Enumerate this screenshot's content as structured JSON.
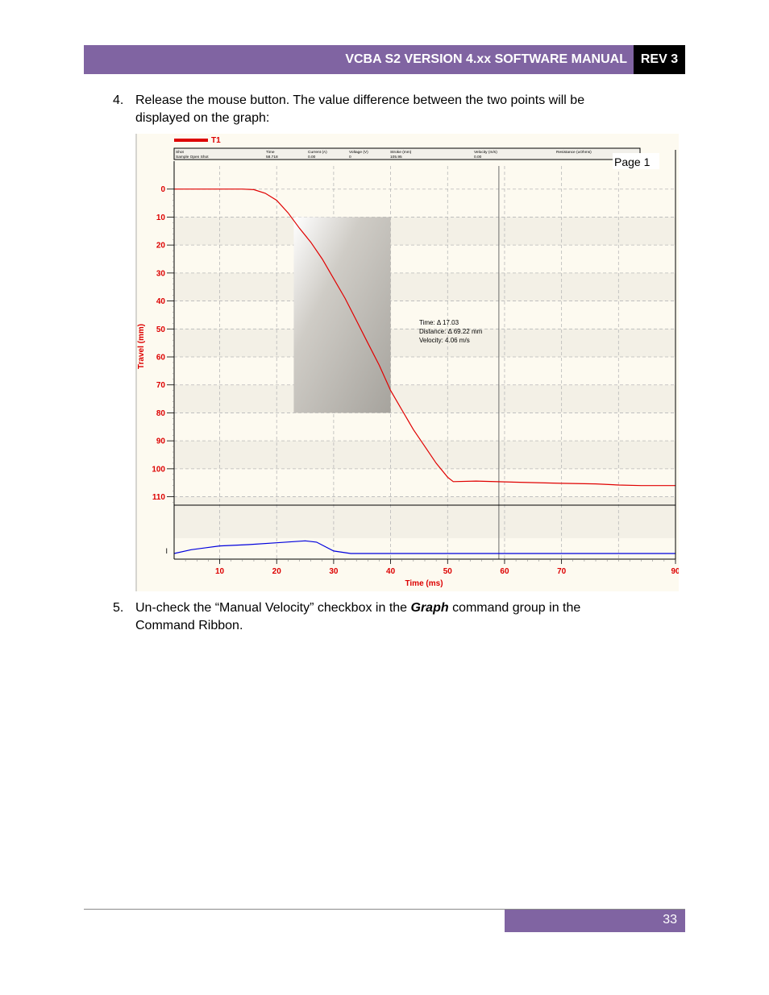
{
  "header": {
    "title": "VCBA S2 VERSION 4.xx SOFTWARE MANUAL",
    "rev": "REV 3"
  },
  "steps": [
    {
      "number": "4.",
      "line1": "Release the mouse button. The value difference between the two points will be",
      "line2": "displayed on the graph:"
    },
    {
      "number": "5.",
      "line1_a": "Un-check the “Manual Velocity” checkbox in the ",
      "line1_b": "Graph",
      "line1_c": " command group in the",
      "line2": "Command Ribbon."
    }
  ],
  "footer": {
    "page_number": "33"
  },
  "chart_data": {
    "type": "line",
    "legend": {
      "label": "T1",
      "color": "#dd0000",
      "placement": "top-left"
    },
    "info_table": {
      "headers": [
        "Shot",
        "Time",
        "Current (A)",
        "Voltage (V)",
        "Stroke (mm)",
        "Velocity (m/s)",
        "Resistance (uOhms)"
      ],
      "values": [
        "Sample Open Shot",
        "58.718",
        "0.00",
        "0",
        "105.95",
        "0.00",
        ""
      ]
    },
    "page_label": "Page 1",
    "xlabel": "Time (ms)",
    "ylabel": "Travel (mm)",
    "xlim": [
      2,
      90
    ],
    "ylim": [
      -10,
      113
    ],
    "x_ticks": [
      "10",
      "20",
      "30",
      "40",
      "50",
      "60",
      "70",
      "90"
    ],
    "y_ticks": [
      "0",
      "10",
      "20",
      "30",
      "40",
      "50",
      "60",
      "70",
      "80",
      "90",
      "100",
      "110"
    ],
    "lower_panel_tick": "I",
    "series": [
      {
        "color": "#e00000",
        "x": [
          2,
          14,
          16,
          18,
          20,
          22,
          24,
          26,
          28,
          30,
          32,
          34,
          36,
          38,
          40,
          42,
          44,
          46,
          48,
          50,
          51,
          55,
          62,
          70,
          76,
          80,
          84,
          90
        ],
        "y": [
          0,
          0,
          0.2,
          1.5,
          4,
          8.5,
          14,
          19,
          25,
          32,
          39,
          47,
          55,
          63,
          72,
          79,
          86,
          92,
          98,
          103,
          104.6,
          104.4,
          104.8,
          105.2,
          105.4,
          105.8,
          106,
          106
        ]
      }
    ],
    "lower_series": {
      "color": "#0000dd",
      "x": [
        2,
        5,
        10,
        15,
        20,
        25,
        27,
        30,
        33,
        40,
        50,
        60,
        70,
        80,
        90
      ],
      "y": [
        0,
        0.3,
        0.6,
        0.7,
        0.85,
        1,
        0.9,
        0.2,
        0,
        0,
        0,
        0,
        0,
        0,
        0
      ],
      "ylim": [
        0,
        3
      ]
    },
    "cursor_x": 59,
    "selection": {
      "x_start": 23,
      "x_end": 40,
      "y_start": 10,
      "y_end": 80
    },
    "annotation": {
      "line1": "Time: Δ  17.03",
      "line2": "Distance: Δ 69.22 mm",
      "line3": "Velocity: 4.06 m/s"
    }
  }
}
